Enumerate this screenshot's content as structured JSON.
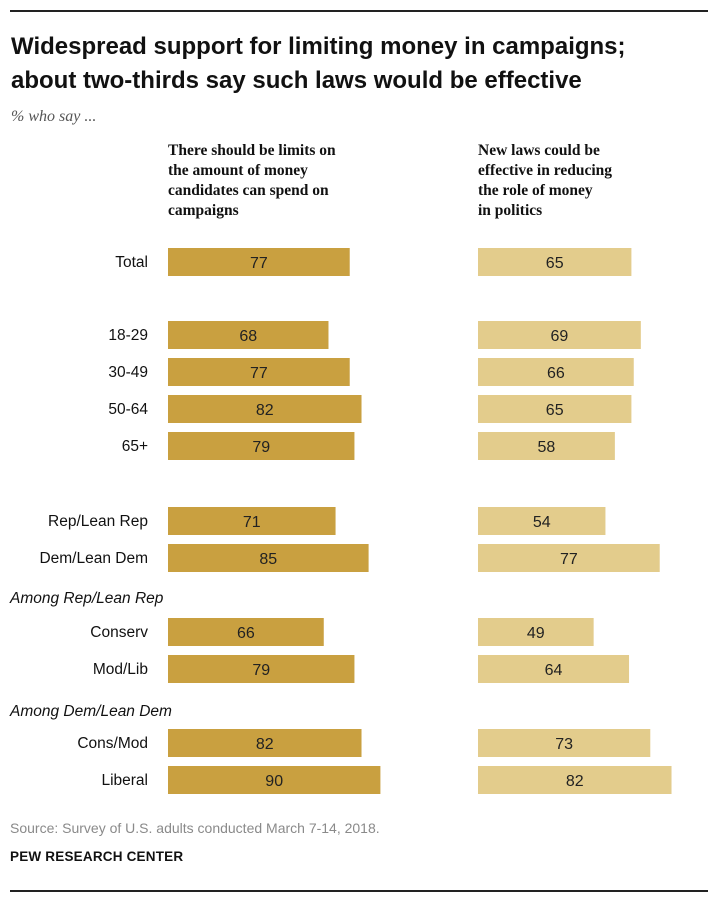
{
  "header": {
    "title_line1": "Widespread support for limiting money in campaigns;",
    "title_line2": "about two-thirds say such laws would be effective",
    "subtitle": "% who say ..."
  },
  "chart_data": {
    "type": "bar",
    "orientation": "horizontal",
    "title": "Widespread support for limiting money in campaigns; about two-thirds say such laws would be effective",
    "subtitle": "% who say ...",
    "series": [
      {
        "name": "There should be limits on the amount of money candidates can spend on campaigns",
        "header_lines": [
          "There should be limits on",
          "the amount of money",
          "candidates can spend on",
          "campaigns"
        ],
        "color": "#c9a040",
        "values": [
          77,
          68,
          77,
          82,
          79,
          71,
          85,
          66,
          79,
          82,
          90
        ]
      },
      {
        "name": "New laws could be effective in reducing the role of money in politics",
        "header_lines": [
          "New laws could be",
          "effective in reducing",
          "the role of money",
          "in politics"
        ],
        "color": "#e3cc8c",
        "values": [
          65,
          69,
          66,
          65,
          58,
          54,
          77,
          49,
          64,
          73,
          82
        ]
      }
    ],
    "categories": [
      "Total",
      "18-29",
      "30-49",
      "50-64",
      "65+",
      "Rep/Lean Rep",
      "Dem/Lean Dem",
      "Conserv",
      "Mod/Lib",
      "Cons/Mod",
      "Liberal"
    ],
    "groups": [
      {
        "label": "Among Rep/Lean Rep",
        "before_index": 7
      },
      {
        "label": "Among Dem/Lean Dem",
        "before_index": 9
      }
    ],
    "xlim": [
      0,
      100
    ]
  },
  "footer": {
    "source": "Source: Survey of U.S. adults conducted March 7-14, 2018.",
    "credit": "PEW RESEARCH CENTER"
  }
}
